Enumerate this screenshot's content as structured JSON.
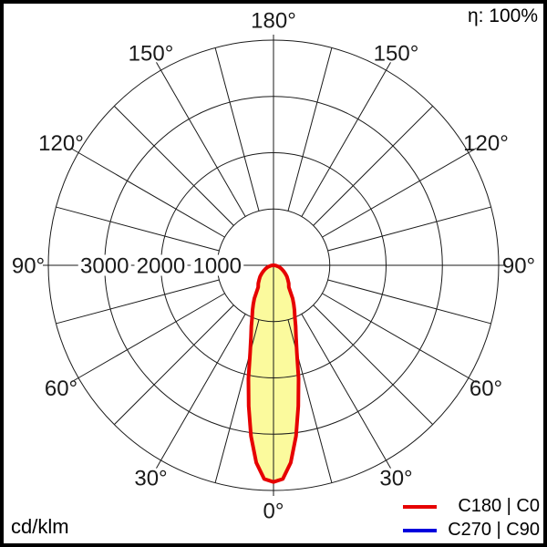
{
  "header": {
    "efficiency": "η: 100%"
  },
  "footer": {
    "unit": "cd/klm"
  },
  "legend": {
    "items": [
      {
        "label": "C180 | C0",
        "color": "#e60000"
      },
      {
        "label": "C270 | C90",
        "color": "#0000dd"
      }
    ]
  },
  "chart_data": {
    "type": "polar",
    "subtype": "luminous_intensity_distribution",
    "unit": "cd/klm",
    "efficiency_label": "η: 100%",
    "angle_labels_deg": [
      0,
      30,
      60,
      90,
      120,
      150,
      180
    ],
    "radial_axis": {
      "ticks": [
        1000,
        2000,
        3000
      ],
      "max": 4000,
      "tick_label_side": "left"
    },
    "grid": {
      "spoke_step_deg": 15,
      "labeled_step_deg": 30,
      "inner_circle": 1000,
      "line_color": "#1a1a1a"
    },
    "series": [
      {
        "name": "C180 | C0",
        "color": "#e60000",
        "fill": "#fbfa9d",
        "symmetric": true,
        "points_deg_cd_per_klm": [
          [
            0,
            3850
          ],
          [
            2.5,
            3800
          ],
          [
            5,
            3520
          ],
          [
            7.5,
            3060
          ],
          [
            10,
            2540
          ],
          [
            12.5,
            2060
          ],
          [
            15,
            1600
          ],
          [
            17.5,
            1330
          ],
          [
            20,
            1150
          ],
          [
            22.5,
            990
          ],
          [
            25,
            880
          ],
          [
            27.5,
            780
          ],
          [
            30,
            680
          ],
          [
            35,
            475
          ],
          [
            40,
            420
          ],
          [
            45,
            360
          ],
          [
            50,
            310
          ],
          [
            55,
            255
          ],
          [
            60,
            205
          ],
          [
            65,
            165
          ],
          [
            70,
            125
          ],
          [
            75,
            90
          ],
          [
            80,
            55
          ],
          [
            85,
            25
          ],
          [
            90,
            0
          ]
        ]
      },
      {
        "name": "C270 | C90",
        "color": "#0000dd",
        "fill": null,
        "symmetric": true,
        "points_deg_cd_per_klm": [
          [
            0,
            3850
          ],
          [
            2.5,
            3800
          ],
          [
            5,
            3520
          ],
          [
            7.5,
            3060
          ],
          [
            10,
            2540
          ],
          [
            12.5,
            2060
          ],
          [
            15,
            1600
          ],
          [
            17.5,
            1330
          ],
          [
            20,
            1150
          ],
          [
            22.5,
            990
          ],
          [
            25,
            880
          ],
          [
            27.5,
            780
          ],
          [
            30,
            680
          ],
          [
            35,
            475
          ],
          [
            40,
            420
          ],
          [
            45,
            360
          ],
          [
            50,
            310
          ],
          [
            55,
            255
          ],
          [
            60,
            205
          ],
          [
            65,
            165
          ],
          [
            70,
            125
          ],
          [
            75,
            90
          ],
          [
            80,
            55
          ],
          [
            85,
            25
          ],
          [
            90,
            0
          ]
        ]
      }
    ]
  }
}
